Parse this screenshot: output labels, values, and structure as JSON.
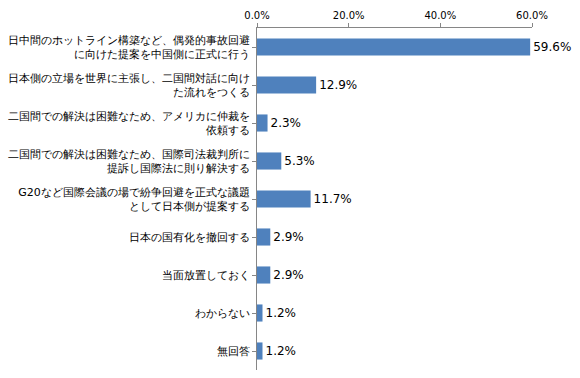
{
  "chart_data": {
    "type": "bar",
    "orientation": "horizontal",
    "categories": [
      "日中間のホットライン構築など、偶発的事故回避に向けた提案を中国側に正式に行う",
      "日本側の立場を世界に主張し、二国間対話に向けた流れをつくる",
      "二国間での解決は困難なため、アメリカに仲裁を依頼する",
      "二国間での解決は困難なため、国際司法裁判所に提訴し国際法に則り解決する",
      "G20など国際会議の場で紛争回避を正式な議題として日本側が提案する",
      "日本の国有化を撤回する",
      "当面放置しておく",
      "わからない",
      "無回答"
    ],
    "values": [
      59.6,
      12.9,
      2.3,
      5.3,
      11.7,
      2.9,
      2.9,
      1.2,
      1.2
    ],
    "value_labels": [
      "59.6%",
      "12.9%",
      "2.3%",
      "5.3%",
      "11.7%",
      "2.9%",
      "2.9%",
      "1.2%",
      "1.2%"
    ],
    "data_labels": true,
    "color": "#4f81bd",
    "xlim": [
      0,
      60
    ],
    "xticks": [
      {
        "value": 0,
        "label": "0.0%"
      },
      {
        "value": 20,
        "label": "20.0%"
      },
      {
        "value": 40,
        "label": "40.0%"
      },
      {
        "value": 60,
        "label": "60.0%"
      }
    ],
    "grid": false
  }
}
